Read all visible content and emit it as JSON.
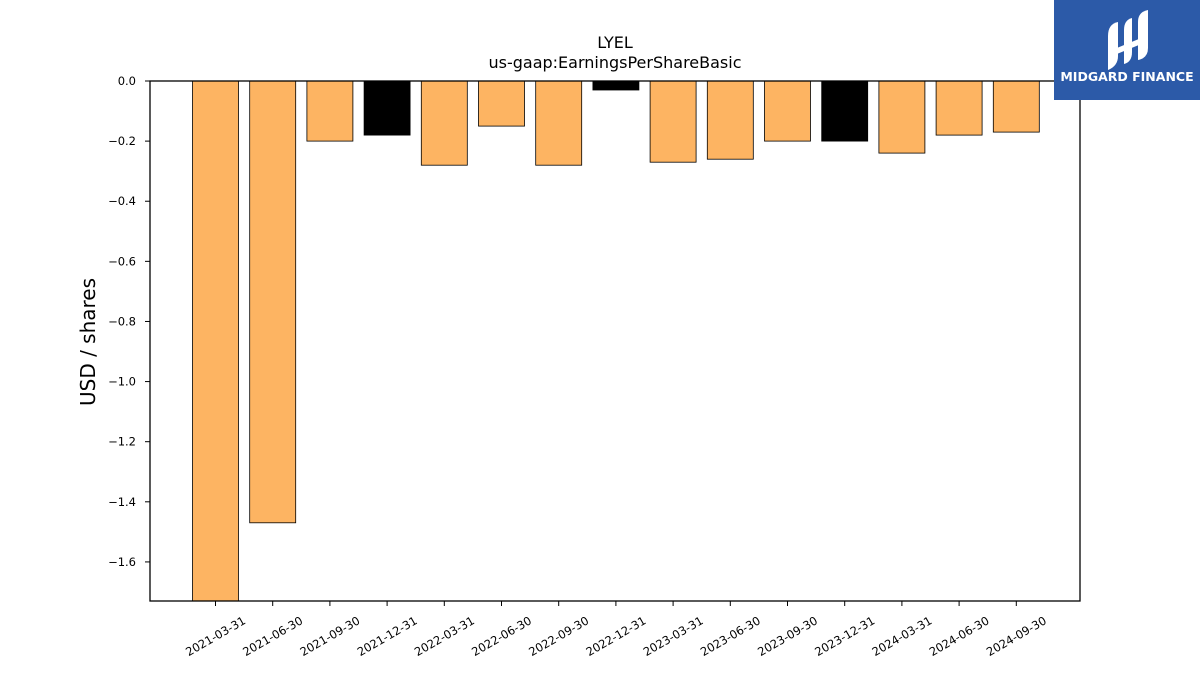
{
  "chart_data": {
    "type": "bar",
    "title": "LYEL",
    "subtitle": "us-gaap:EarningsPerShareBasic",
    "xlabel": "",
    "ylabel": "USD / shares",
    "categories": [
      "2021-03-31",
      "2021-06-30",
      "2021-09-30",
      "2021-12-31",
      "2022-03-31",
      "2022-06-30",
      "2022-09-30",
      "2022-12-31",
      "2023-03-31",
      "2023-06-30",
      "2023-09-30",
      "2023-12-31",
      "2024-03-31",
      "2024-06-30",
      "2024-09-30"
    ],
    "values": [
      -1.73,
      -1.47,
      -0.2,
      -0.18,
      -0.28,
      -0.15,
      -0.28,
      -0.03,
      -0.27,
      -0.26,
      -0.2,
      -0.2,
      -0.24,
      -0.18,
      -0.17
    ],
    "bar_colors": [
      "#fdb462",
      "#fdb462",
      "#fdb462",
      "#000000",
      "#fdb462",
      "#fdb462",
      "#fdb462",
      "#000000",
      "#fdb462",
      "#fdb462",
      "#fdb462",
      "#000000",
      "#fdb462",
      "#fdb462",
      "#fdb462"
    ],
    "ylim": [
      -1.73,
      0.0
    ],
    "yticks": [
      0.0,
      -0.2,
      -0.4,
      -0.6,
      -0.8,
      -1.0,
      -1.2,
      -1.4,
      -1.6
    ],
    "ytick_labels": [
      "0.0",
      "−0.2",
      "−0.4",
      "−0.6",
      "−0.8",
      "−1.0",
      "−1.2",
      "−1.4",
      "−1.6"
    ],
    "grid": false,
    "legend": "none"
  },
  "logo": {
    "text": "MIDGARD FINANCE",
    "background": "#2c5aa8",
    "icon": "midgard-logo-icon"
  }
}
